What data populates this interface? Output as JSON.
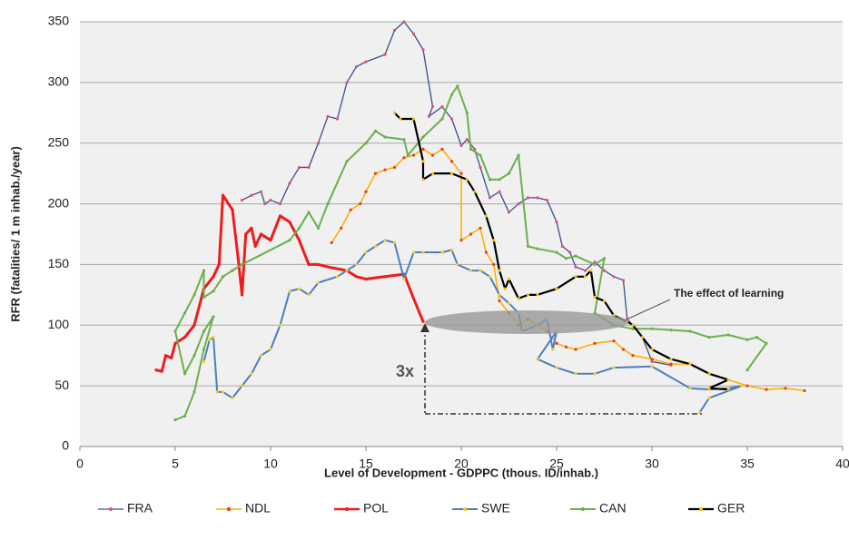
{
  "chart_data": {
    "type": "line",
    "xlabel": "Level of Development - GDPPC (thous. ID/inhab.)",
    "ylabel": "RFR (fatalities/ 1 m  inhab./year)",
    "annotations": [
      "The effect of learning",
      "3x"
    ],
    "xlim": [
      0,
      40
    ],
    "xticks": [
      0,
      5,
      10,
      15,
      20,
      25,
      30,
      35,
      40
    ],
    "ylim": [
      0,
      350
    ],
    "yticks": [
      0,
      50,
      100,
      150,
      200,
      250,
      300,
      350
    ],
    "grid": true,
    "legend": "bottom",
    "series": [
      {
        "name": "FRA",
        "color": "#3b4f8f",
        "marker_color": "#e0507a",
        "width": 1.3,
        "x": [
          8.5,
          9,
          9.5,
          9.7,
          10,
          10.5,
          11,
          11.5,
          12,
          12.5,
          13,
          13.5,
          14,
          14.5,
          15,
          16,
          16.5,
          17,
          17.5,
          18,
          18.5,
          18.3,
          19,
          19.5,
          20,
          20.3,
          20.7,
          21,
          21.5,
          22,
          22.5,
          23,
          23.5,
          24,
          24.5,
          25,
          25.3,
          25.7,
          26,
          26.5,
          27,
          27.5,
          28,
          28.5,
          28.7,
          29,
          29.5,
          30,
          31
        ],
        "values": [
          203,
          207,
          210,
          200,
          203,
          200,
          217,
          230,
          230,
          250,
          272,
          270,
          300,
          313,
          317,
          323,
          343,
          350,
          340,
          327,
          280,
          272,
          280,
          270,
          248,
          253,
          245,
          230,
          205,
          210,
          193,
          200,
          205,
          205,
          203,
          185,
          165,
          160,
          148,
          145,
          152,
          145,
          140,
          137,
          105,
          100,
          90,
          70,
          67
        ]
      },
      {
        "name": "NDL",
        "color": "#ffb000",
        "marker_color": "#e04020",
        "width": 1.6,
        "x": [
          13.2,
          13.7,
          14.2,
          14.7,
          15,
          15.5,
          16,
          16.5,
          17,
          17.5,
          18,
          18.5,
          19,
          19.5,
          20,
          20,
          20.5,
          21,
          21.3,
          21.7,
          22,
          22.5,
          23,
          23.5,
          24,
          24.5,
          25,
          25.5,
          26,
          27,
          28,
          28.5,
          29,
          30,
          31,
          32,
          33,
          34,
          35,
          36,
          37,
          38
        ],
        "values": [
          168,
          180,
          195,
          200,
          210,
          225,
          228,
          230,
          238,
          240,
          245,
          240,
          245,
          235,
          225,
          170,
          175,
          180,
          160,
          150,
          120,
          110,
          100,
          105,
          100,
          95,
          85,
          82,
          80,
          85,
          87,
          80,
          75,
          72,
          68,
          68,
          60,
          55,
          50,
          47,
          48,
          46
        ]
      },
      {
        "name": "POL",
        "color": "#ee1c1c",
        "marker_color": "#ee1c1c",
        "width": 3,
        "x": [
          4,
          4.3,
          4.5,
          4.8,
          5,
          5.5,
          6,
          6.5,
          7,
          7.3,
          7.5,
          8,
          8.3,
          8.5,
          8.7,
          9,
          9.2,
          9.5,
          10,
          10.5,
          11,
          11.5,
          12,
          12.5,
          13,
          14,
          14.5,
          15,
          16,
          17,
          17.5,
          18
        ],
        "values": [
          63,
          62,
          75,
          73,
          85,
          90,
          100,
          130,
          140,
          150,
          207,
          195,
          155,
          125,
          175,
          180,
          165,
          175,
          170,
          190,
          185,
          170,
          150,
          150,
          148,
          145,
          140,
          138,
          140,
          142,
          122,
          103
        ]
      },
      {
        "name": "SWE",
        "color": "#4a7ec2",
        "marker_color": "#f0d020",
        "width": 2,
        "x": [
          6.5,
          6.8,
          7,
          7.2,
          7.5,
          8,
          8.5,
          9,
          9.5,
          10,
          10.5,
          11,
          11.5,
          12,
          12.5,
          13.5,
          14,
          14.5,
          15,
          15.5,
          16,
          16.5,
          17,
          17.5,
          18,
          19,
          19.5,
          19.8,
          20.5,
          21,
          21.5,
          22,
          22.5,
          23,
          23.2,
          24,
          24.5,
          24.8,
          25,
          24,
          25,
          26,
          27,
          28,
          30,
          32,
          33,
          34,
          34.7,
          33,
          32.5
        ],
        "values": [
          70,
          88,
          90,
          45,
          45,
          40,
          50,
          60,
          75,
          80,
          100,
          128,
          130,
          125,
          135,
          140,
          145,
          150,
          160,
          165,
          170,
          168,
          138,
          160,
          160,
          160,
          162,
          150,
          145,
          145,
          140,
          125,
          118,
          110,
          95,
          100,
          105,
          80,
          95,
          72,
          65,
          60,
          60,
          65,
          66,
          48,
          47,
          48,
          50,
          40,
          28
        ]
      },
      {
        "name": "CAN",
        "color": "#6ab04c",
        "marker_color": "#6ab04c",
        "width": 2,
        "x": [
          5,
          5.5,
          6,
          6.5,
          7,
          6.5,
          6,
          5.5,
          5,
          5.5,
          6,
          6.5,
          6.5,
          7,
          7.5,
          8,
          8.5,
          11,
          11.5,
          12,
          12.5,
          13,
          14,
          15,
          15.5,
          16,
          17,
          17.2,
          18,
          19,
          19.5,
          19.8,
          20.3,
          20.5,
          21,
          21.5,
          22,
          22.5,
          23,
          23.5,
          24,
          25,
          25.5,
          26,
          27,
          27.5,
          27,
          28,
          29,
          30,
          31,
          32,
          33,
          34,
          35,
          35.5,
          36,
          35
        ],
        "values": [
          22,
          25,
          45,
          80,
          107,
          95,
          75,
          60,
          95,
          110,
          125,
          145,
          123,
          128,
          140,
          145,
          150,
          170,
          180,
          193,
          180,
          200,
          235,
          250,
          260,
          255,
          253,
          240,
          255,
          270,
          290,
          297,
          275,
          245,
          240,
          220,
          220,
          225,
          240,
          165,
          163,
          160,
          155,
          157,
          150,
          155,
          110,
          100,
          97,
          97,
          96,
          95,
          90,
          92,
          88,
          90,
          85,
          63
        ]
      },
      {
        "name": "GER",
        "color": "#000000",
        "marker_color": "#f5c400",
        "width": 2.2,
        "x": [
          16.5,
          16.8,
          17.5,
          18,
          18,
          18.5,
          19.5,
          20.3,
          20.7,
          21.3,
          21.7,
          22,
          22.3,
          22.5,
          23,
          23.5,
          24,
          25,
          26,
          26.5,
          26.8,
          27,
          27.5,
          28,
          28.7,
          29,
          29.5,
          30,
          31,
          32,
          33,
          34,
          33,
          34
        ],
        "values": [
          275,
          270,
          270,
          235,
          220,
          225,
          225,
          220,
          210,
          190,
          170,
          145,
          130,
          138,
          122,
          125,
          125,
          130,
          140,
          140,
          145,
          123,
          120,
          108,
          103,
          100,
          90,
          80,
          72,
          68,
          60,
          55,
          48,
          47
        ]
      }
    ]
  }
}
